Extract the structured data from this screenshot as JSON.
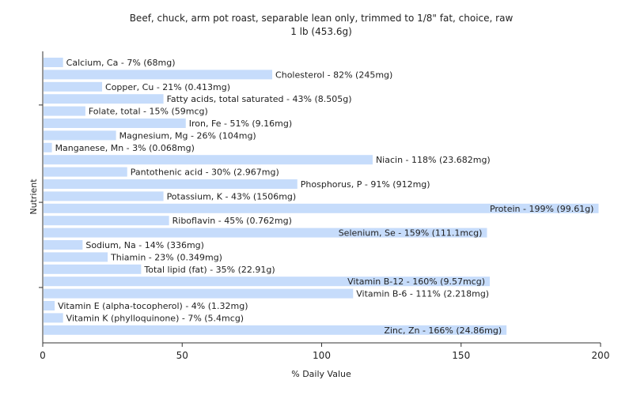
{
  "chart_data": {
    "type": "bar",
    "orientation": "horizontal",
    "title": "Beef, chuck, arm pot roast, separable lean only, trimmed to 1/8\" fat, choice, raw",
    "subtitle": "1 lb (453.6g)",
    "xlabel": "% Daily Value",
    "ylabel": "Nutrient",
    "xlim": [
      0,
      200
    ],
    "xticks": [
      0,
      50,
      100,
      150,
      200
    ],
    "grid": false,
    "bar_color": "#c6dcfb",
    "categories": [
      "Calcium, Ca",
      "Cholesterol",
      "Copper, Cu",
      "Fatty acids, total saturated",
      "Folate, total",
      "Iron, Fe",
      "Magnesium, Mg",
      "Manganese, Mn",
      "Niacin",
      "Pantothenic acid",
      "Phosphorus, P",
      "Potassium, K",
      "Protein",
      "Riboflavin",
      "Selenium, Se",
      "Sodium, Na",
      "Thiamin",
      "Total lipid (fat)",
      "Vitamin B-12",
      "Vitamin B-6",
      "Vitamin E (alpha-tocopherol)",
      "Vitamin K (phylloquinone)",
      "Zinc, Zn"
    ],
    "values": [
      7,
      82,
      21,
      43,
      15,
      51,
      26,
      3,
      118,
      30,
      91,
      43,
      199,
      45,
      159,
      14,
      23,
      35,
      160,
      111,
      4,
      7,
      166
    ],
    "amounts": [
      "68mg",
      "245mg",
      "0.413mg",
      "8.505g",
      "59mcg",
      "9.16mg",
      "104mg",
      "0.068mg",
      "23.682mg",
      "2.967mg",
      "912mg",
      "1506mg",
      "99.61g",
      "0.762mg",
      "111.1mcg",
      "336mg",
      "0.349mg",
      "22.91g",
      "9.57mcg",
      "2.218mg",
      "1.32mg",
      "5.4mcg",
      "24.86mg"
    ],
    "labels": [
      "Calcium, Ca - 7% (68mg)",
      "Cholesterol - 82% (245mg)",
      "Copper, Cu - 21% (0.413mg)",
      "Fatty acids, total saturated - 43% (8.505g)",
      "Folate, total - 15% (59mcg)",
      "Iron, Fe - 51% (9.16mg)",
      "Magnesium, Mg - 26% (104mg)",
      "Manganese, Mn - 3% (0.068mg)",
      "Niacin - 118% (23.682mg)",
      "Pantothenic acid - 30% (2.967mg)",
      "Phosphorus, P - 91% (912mg)",
      "Potassium, K - 43% (1506mg)",
      "Protein - 199% (99.61g)",
      "Riboflavin - 45% (0.762mg)",
      "Selenium, Se - 159% (111.1mcg)",
      "Sodium, Na - 14% (336mg)",
      "Thiamin - 23% (0.349mg)",
      "Total lipid (fat) - 35% (22.91g)",
      "Vitamin B-12 - 160% (9.57mcg)",
      "Vitamin B-6 - 111% (2.218mg)",
      "Vitamin E (alpha-tocopherol) - 4% (1.32mg)",
      "Vitamin K (phylloquinone) - 7% (5.4mcg)",
      "Zinc, Zn - 166% (24.86mg)"
    ]
  }
}
